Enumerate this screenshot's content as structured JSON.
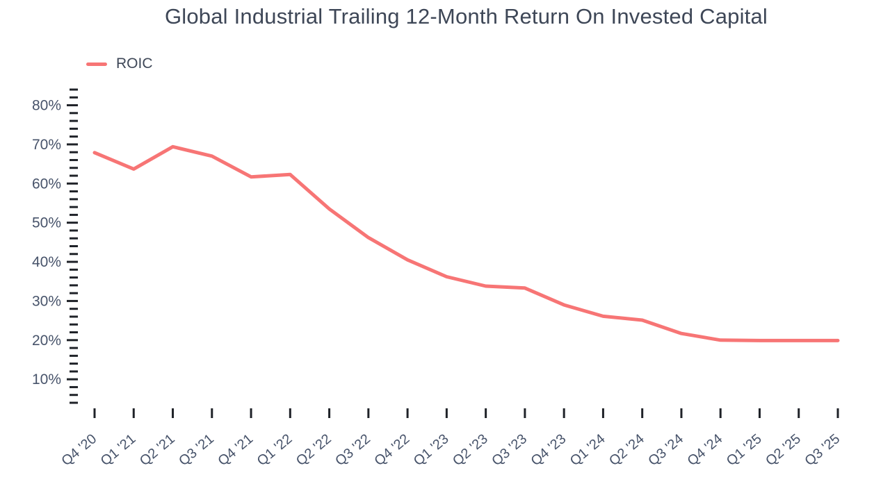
{
  "title": "Global Industrial Trailing 12-Month Return On Invested Capital",
  "legend": {
    "label": "ROIC"
  },
  "colors": {
    "line": "#f77575",
    "text": "#47536a",
    "title": "#3e4757",
    "tick": "#1f2228",
    "background": "#ffffff"
  },
  "chart_data": {
    "type": "line",
    "title": "Global Industrial Trailing 12-Month Return On Invested Capital",
    "xlabel": "",
    "ylabel": "",
    "grid": false,
    "legend_position": "top-left",
    "categories": [
      "Q4 '20",
      "Q1 '21",
      "Q2 '21",
      "Q3 '21",
      "Q4 '21",
      "Q1 '22",
      "Q2 '22",
      "Q3 '22",
      "Q4 '22",
      "Q1 '23",
      "Q2 '23",
      "Q3 '23",
      "Q4 '23",
      "Q1 '24",
      "Q2 '24",
      "Q3 '24",
      "Q4 '24",
      "Q1 '25",
      "Q2 '25",
      "Q3 '25"
    ],
    "series": [
      {
        "name": "ROIC",
        "values": [
          67.9,
          63.7,
          69.4,
          67.0,
          61.7,
          62.3,
          53.5,
          46.2,
          40.5,
          36.2,
          33.8,
          33.3,
          29.0,
          26.1,
          25.1,
          21.7,
          20.0,
          19.9,
          19.9,
          19.9
        ]
      }
    ],
    "ylim": [
      4,
      84
    ],
    "y_major_ticks": [
      10,
      20,
      30,
      40,
      50,
      60,
      70,
      80
    ],
    "y_minor_tick_step": 2,
    "y_tick_suffix": "%"
  }
}
